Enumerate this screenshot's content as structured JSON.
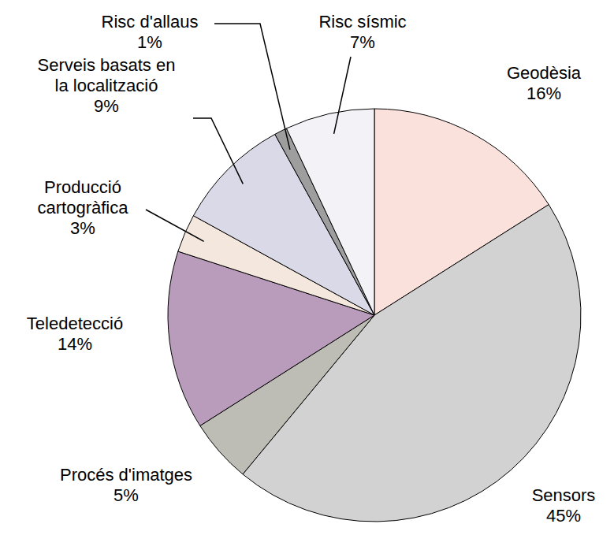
{
  "chart_data": {
    "type": "pie",
    "categories": [
      "Geodèsia",
      "Sensors",
      "Procés d'imatges",
      "Teledetecció",
      "Producció cartogràfica",
      "Serveis basats en la localització",
      "Risc d'allaus",
      "Risc sísmic"
    ],
    "values": [
      16,
      45,
      5,
      14,
      3,
      9,
      1,
      7
    ],
    "value_labels": [
      "16%",
      "45%",
      "5%",
      "14%",
      "3%",
      "9%",
      "1%",
      "7%"
    ],
    "colors": [
      "#fbe1dc",
      "#d2d2d2",
      "#bdbdb5",
      "#b99bbb",
      "#f4e7dd",
      "#d9d9e7",
      "#9e9e9e",
      "#f3f3f7"
    ]
  }
}
